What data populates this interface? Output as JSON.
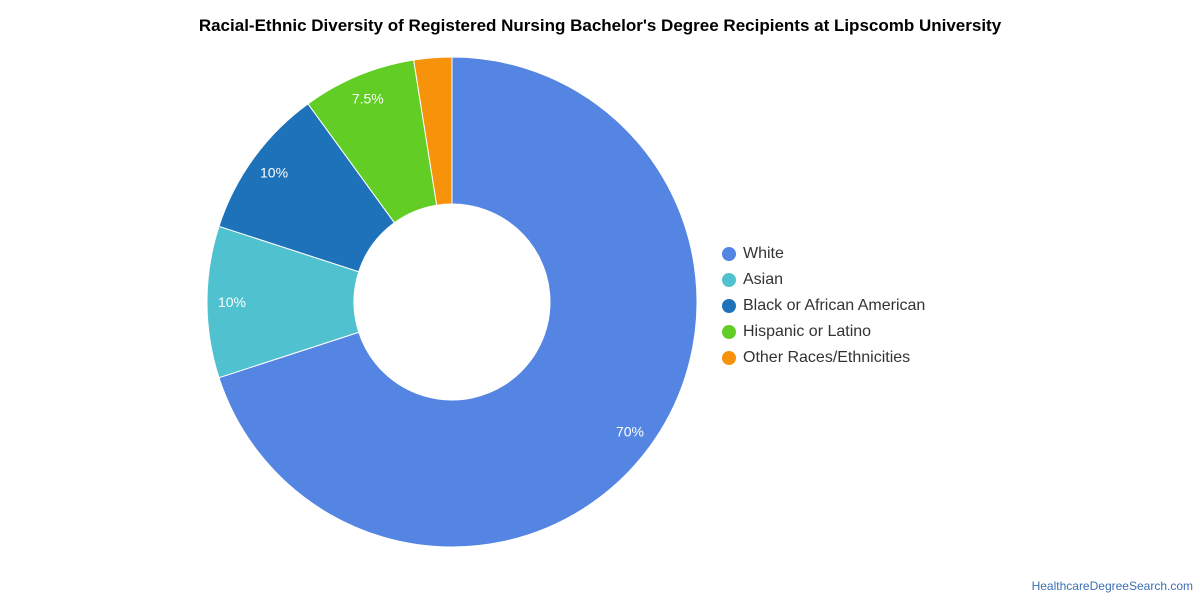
{
  "chart_data": {
    "type": "pie",
    "variant": "donut",
    "title": "Racial-Ethnic Diversity of Registered Nursing Bachelor's Degree Recipients at Lipscomb University",
    "categories": [
      "White",
      "Asian",
      "Black or African American",
      "Hispanic or Latino",
      "Other Races/Ethnicities"
    ],
    "values": [
      70,
      10,
      10,
      7.5,
      2.5
    ],
    "data_labels": [
      "70%",
      "10%",
      "10%",
      "7.5%",
      ""
    ],
    "colors": [
      "#5485e2",
      "#4fc1cf",
      "#1e72ba",
      "#62cd24",
      "#f6930a"
    ],
    "legend": {
      "position": "right",
      "entries": [
        "White",
        "Asian",
        "Black or African American",
        "Hispanic or Latino",
        "Other Races/Ethnicities"
      ]
    }
  },
  "footer": {
    "source": "HealthcareDegreeSearch.com"
  }
}
